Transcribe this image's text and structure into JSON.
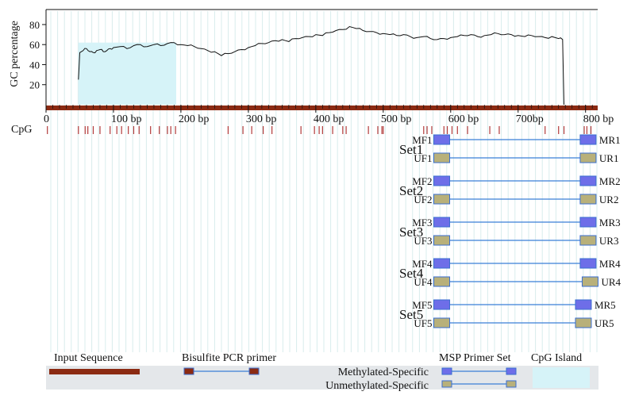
{
  "chart_data": {
    "type": "line",
    "ylabel": "GC percentage",
    "yticks": [
      "20",
      "40",
      "60",
      "80"
    ],
    "ylim": [
      0,
      95
    ],
    "xlim": [
      0,
      818
    ],
    "xticks": [
      {
        "v": 0,
        "label": "0"
      },
      {
        "v": 100,
        "label": "100 bp"
      },
      {
        "v": 200,
        "label": "200 bp"
      },
      {
        "v": 300,
        "label": "300 bp"
      },
      {
        "v": 400,
        "label": "400 bp"
      },
      {
        "v": 500,
        "label": "500 bp"
      },
      {
        "v": 600,
        "label": "600 bp"
      },
      {
        "v": 700,
        "label": "700bp"
      },
      {
        "v": 800,
        "label": "800 bp"
      }
    ],
    "gc_series": {
      "x": [
        48,
        50,
        55,
        60,
        65,
        70,
        75,
        80,
        85,
        90,
        95,
        100,
        110,
        120,
        130,
        140,
        150,
        160,
        170,
        180,
        190,
        200,
        210,
        220,
        230,
        240,
        250,
        260,
        270,
        280,
        290,
        300,
        310,
        320,
        330,
        340,
        350,
        360,
        370,
        380,
        390,
        400,
        410,
        420,
        430,
        440,
        450,
        460,
        470,
        480,
        490,
        500,
        510,
        520,
        530,
        540,
        550,
        560,
        570,
        580,
        590,
        600,
        610,
        620,
        630,
        640,
        650,
        660,
        670,
        680,
        690,
        700,
        710,
        720,
        730,
        740,
        750,
        760,
        766,
        768
      ],
      "y": [
        25,
        52,
        54,
        56,
        53,
        52,
        54,
        55,
        53,
        54,
        56,
        57,
        58,
        56,
        59,
        60,
        58,
        60,
        59,
        61,
        62,
        60,
        59,
        58,
        56,
        54,
        53,
        49,
        51,
        53,
        55,
        57,
        59,
        61,
        62,
        64,
        65,
        63,
        66,
        67,
        68,
        70,
        69,
        72,
        74,
        75,
        78,
        76,
        74,
        73,
        72,
        71,
        70,
        69,
        70,
        68,
        67,
        68,
        66,
        65,
        66,
        67,
        68,
        69,
        70,
        68,
        69,
        70,
        71,
        70,
        70,
        69,
        68,
        69,
        68,
        67,
        68,
        66,
        65,
        0
      ]
    },
    "cpg_island": {
      "start": 48,
      "end": 193
    },
    "cpg_label": "CpG",
    "cpg_sites": [
      2,
      48,
      58,
      62,
      70,
      80,
      95,
      105,
      112,
      122,
      130,
      138,
      155,
      168,
      180,
      185,
      192,
      270,
      292,
      305,
      322,
      335,
      378,
      398,
      405,
      410,
      425,
      440,
      445,
      478,
      492,
      498,
      500,
      560,
      565,
      572,
      590,
      595,
      602,
      610,
      625,
      658,
      672,
      740,
      760,
      768,
      798,
      802,
      808
    ],
    "primer_sets": [
      {
        "name": "Set1",
        "mf": "MF1",
        "mr": "MR1",
        "uf": "UF1",
        "ur": "UR1",
        "m_start": 575,
        "m_end": 792,
        "u_start": 575,
        "u_end": 792
      },
      {
        "name": "Set2",
        "mf": "MF2",
        "mr": "MR2",
        "uf": "UF2",
        "ur": "UR2",
        "m_start": 575,
        "m_end": 792,
        "u_start": 575,
        "u_end": 792
      },
      {
        "name": "Set3",
        "mf": "MF3",
        "mr": "MR3",
        "uf": "UF3",
        "ur": "UR3",
        "m_start": 575,
        "m_end": 792,
        "u_start": 575,
        "u_end": 792
      },
      {
        "name": "Set4",
        "mf": "MF4",
        "mr": "MR4",
        "uf": "UF4",
        "ur": "UR4",
        "m_start": 575,
        "m_end": 792,
        "u_start": 575,
        "u_end": 795
      },
      {
        "name": "Set5",
        "mf": "MF5",
        "mr": "MR5",
        "uf": "UF5",
        "ur": "UR5",
        "m_start": 575,
        "m_end": 785,
        "u_start": 575,
        "u_end": 785
      }
    ],
    "legend": {
      "input_sequence": "Input Sequence",
      "bisulfite_pcr_primer": "Bisulfite PCR primer",
      "msp_primer_set": "MSP Primer Set",
      "cpg_island": "CpG Island",
      "methylated_specific": "Methylated-Specific",
      "unmethylated_specific": "Unmethylated-Specific"
    },
    "colors": {
      "sequence_bar": "#8b2a12",
      "cpg_island_fill": "#d6f3f8",
      "cpg_tick": "#b23a3a",
      "methylated_primer": "#6e6ee8",
      "unmethylated_primer": "#b8b07a",
      "primer_border": "#3a6ed0",
      "connector": "#3a7fd8",
      "guide_line": "#d8ecec",
      "legend_bg": "#e4e7ea"
    }
  }
}
